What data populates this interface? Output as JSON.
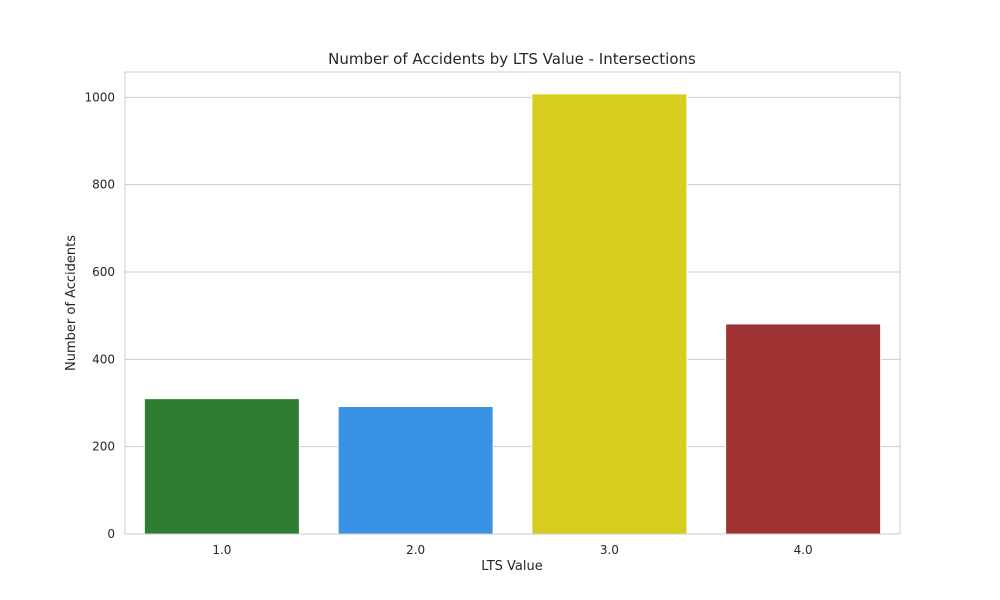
{
  "chart_data": {
    "type": "bar",
    "title": "Number of Accidents by LTS Value - Intersections",
    "xlabel": "LTS Value",
    "ylabel": "Number of Accidents",
    "categories": [
      "1.0",
      "2.0",
      "3.0",
      "4.0"
    ],
    "values": [
      310,
      292,
      1008,
      481
    ],
    "colors": [
      "#2e7d32",
      "#3a92e4",
      "#d7cd1f",
      "#9e3232"
    ],
    "ylim": [
      0,
      1058
    ],
    "yticks": [
      0,
      200,
      400,
      600,
      800,
      1000
    ],
    "grid": true,
    "legend": "none"
  }
}
